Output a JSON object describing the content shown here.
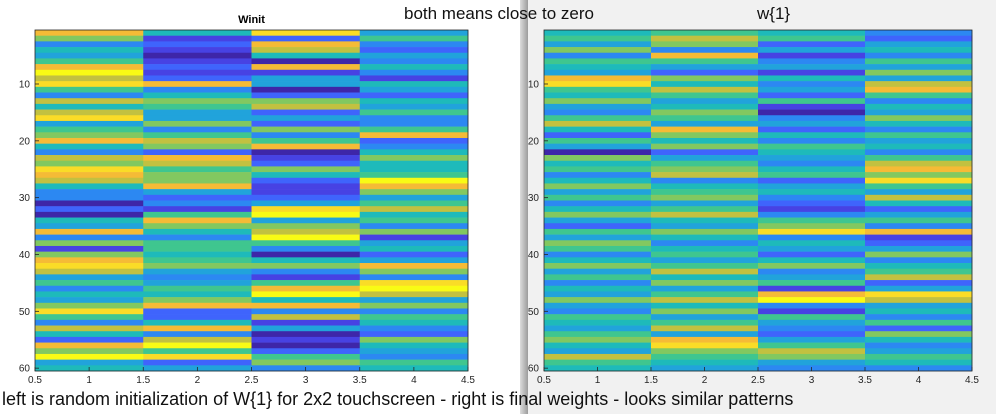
{
  "annotations": {
    "top": "both means close to zero",
    "right_title": "w{1}",
    "caption": "left is random initialization of W{1} for 2x2 touchscreen - right is final weights - looks similar patterns"
  },
  "colormap": [
    "#3e26a8",
    "#4742e3",
    "#3f64fc",
    "#2c88f2",
    "#21a3db",
    "#1ebaba",
    "#3fc68f",
    "#82c860",
    "#c2c140",
    "#f5bb36",
    "#fadc27",
    "#f9fb15"
  ],
  "chart_data": [
    {
      "type": "heatmap",
      "title": "Winit",
      "xlim": [
        0.5,
        4.5
      ],
      "ylim": [
        60.5,
        0.5
      ],
      "x_ticks": [
        "0.5",
        "1",
        "1.5",
        "2",
        "2.5",
        "3",
        "3.5",
        "4",
        "4.5"
      ],
      "y_ticks": [
        "10",
        "20",
        "30",
        "40",
        "50",
        "60"
      ],
      "rows": 60,
      "columns": 4,
      "values_note": "",
      "values": [
        [
          9,
          5,
          10,
          4
        ],
        [
          7,
          1,
          2,
          6
        ],
        [
          3,
          2,
          9,
          3
        ],
        [
          5,
          1,
          8,
          2
        ],
        [
          4,
          0,
          5,
          4
        ],
        [
          6,
          1,
          0,
          3
        ],
        [
          9,
          2,
          9,
          5
        ],
        [
          11,
          1,
          1,
          3
        ],
        [
          8,
          2,
          4,
          1
        ],
        [
          10,
          9,
          4,
          5
        ],
        [
          6,
          3,
          0,
          4
        ],
        [
          3,
          5,
          2,
          2
        ],
        [
          8,
          7,
          7,
          5
        ],
        [
          5,
          6,
          8,
          4
        ],
        [
          8,
          4,
          2,
          6
        ],
        [
          10,
          4,
          4,
          3
        ],
        [
          4,
          7,
          2,
          3
        ],
        [
          6,
          3,
          7,
          6
        ],
        [
          7,
          6,
          3,
          9
        ],
        [
          9,
          8,
          6,
          2
        ],
        [
          5,
          7,
          9,
          3
        ],
        [
          3,
          2,
          0,
          5
        ],
        [
          8,
          9,
          1,
          7
        ],
        [
          7,
          8,
          2,
          5
        ],
        [
          10,
          6,
          7,
          5
        ],
        [
          9,
          7,
          5,
          6
        ],
        [
          8,
          7,
          2,
          11
        ],
        [
          5,
          9,
          1,
          9
        ],
        [
          3,
          4,
          1,
          7
        ],
        [
          3,
          2,
          2,
          4
        ],
        [
          0,
          3,
          4,
          6
        ],
        [
          2,
          1,
          10,
          8
        ],
        [
          0,
          6,
          11,
          5
        ],
        [
          5,
          9,
          4,
          6
        ],
        [
          4,
          7,
          7,
          3
        ],
        [
          9,
          5,
          8,
          7
        ],
        [
          3,
          3,
          11,
          1
        ],
        [
          7,
          6,
          6,
          4
        ],
        [
          1,
          6,
          3,
          5
        ],
        [
          7,
          5,
          0,
          2
        ],
        [
          9,
          6,
          5,
          4
        ],
        [
          10,
          7,
          7,
          9
        ],
        [
          8,
          4,
          3,
          7
        ],
        [
          4,
          3,
          1,
          3
        ],
        [
          6,
          4,
          6,
          10
        ],
        [
          3,
          6,
          9,
          11
        ],
        [
          5,
          5,
          11,
          8
        ],
        [
          4,
          7,
          5,
          4
        ],
        [
          7,
          9,
          9,
          7
        ],
        [
          10,
          2,
          3,
          3
        ],
        [
          6,
          2,
          8,
          6
        ],
        [
          3,
          5,
          1,
          5
        ],
        [
          8,
          9,
          4,
          3
        ],
        [
          5,
          3,
          0,
          2
        ],
        [
          2,
          8,
          1,
          7
        ],
        [
          9,
          11,
          0,
          5
        ],
        [
          7,
          6,
          2,
          4
        ],
        [
          11,
          10,
          6,
          3
        ],
        [
          4,
          2,
          7,
          6
        ],
        [
          5,
          4,
          3,
          5
        ]
      ]
    },
    {
      "type": "heatmap",
      "title": "",
      "xlim": [
        0.5,
        4.5
      ],
      "ylim": [
        60.5,
        0.5
      ],
      "x_ticks": [
        "0.5",
        "1",
        "1.5",
        "2",
        "2.5",
        "3",
        "3.5",
        "4",
        "4.5"
      ],
      "y_ticks": [
        "10",
        "20",
        "30",
        "40",
        "50",
        "60"
      ],
      "rows": 60,
      "columns": 4,
      "values_note": "",
      "values": [
        [
          5,
          6,
          5,
          3
        ],
        [
          6,
          8,
          6,
          2
        ],
        [
          4,
          7,
          2,
          4
        ],
        [
          7,
          3,
          4,
          5
        ],
        [
          3,
          9,
          1,
          3
        ],
        [
          6,
          6,
          3,
          6
        ],
        [
          5,
          4,
          4,
          4
        ],
        [
          4,
          2,
          1,
          7
        ],
        [
          9,
          7,
          5,
          4
        ],
        [
          10,
          5,
          3,
          8
        ],
        [
          6,
          8,
          4,
          9
        ],
        [
          5,
          6,
          2,
          6
        ],
        [
          7,
          4,
          6,
          3
        ],
        [
          4,
          5,
          1,
          5
        ],
        [
          3,
          7,
          0,
          4
        ],
        [
          6,
          6,
          3,
          7
        ],
        [
          8,
          4,
          4,
          5
        ],
        [
          5,
          9,
          2,
          3
        ],
        [
          2,
          7,
          5,
          6
        ],
        [
          6,
          5,
          3,
          4
        ],
        [
          4,
          7,
          6,
          5
        ],
        [
          0,
          2,
          5,
          3
        ],
        [
          7,
          4,
          4,
          6
        ],
        [
          5,
          6,
          3,
          8
        ],
        [
          6,
          7,
          5,
          9
        ],
        [
          3,
          8,
          6,
          7
        ],
        [
          5,
          3,
          2,
          10
        ],
        [
          7,
          5,
          4,
          6
        ],
        [
          4,
          6,
          5,
          4
        ],
        [
          6,
          7,
          3,
          8
        ],
        [
          3,
          4,
          2,
          5
        ],
        [
          5,
          6,
          1,
          2
        ],
        [
          7,
          8,
          3,
          4
        ],
        [
          4,
          5,
          6,
          6
        ],
        [
          2,
          4,
          7,
          3
        ],
        [
          6,
          7,
          10,
          9
        ],
        [
          4,
          5,
          3,
          1
        ],
        [
          7,
          3,
          5,
          2
        ],
        [
          6,
          5,
          4,
          4
        ],
        [
          3,
          6,
          2,
          7
        ],
        [
          5,
          4,
          5,
          3
        ],
        [
          7,
          6,
          7,
          5
        ],
        [
          4,
          8,
          3,
          6
        ],
        [
          6,
          5,
          4,
          8
        ],
        [
          3,
          7,
          6,
          2
        ],
        [
          5,
          4,
          1,
          4
        ],
        [
          4,
          6,
          9,
          10
        ],
        [
          7,
          8,
          11,
          8
        ],
        [
          4,
          5,
          3,
          4
        ],
        [
          3,
          7,
          1,
          5
        ],
        [
          6,
          4,
          6,
          3
        ],
        [
          5,
          6,
          4,
          6
        ],
        [
          4,
          8,
          3,
          2
        ],
        [
          6,
          4,
          2,
          7
        ],
        [
          7,
          9,
          4,
          5
        ],
        [
          5,
          10,
          6,
          3
        ],
        [
          4,
          7,
          8,
          4
        ],
        [
          8,
          6,
          7,
          6
        ],
        [
          6,
          5,
          4,
          5
        ],
        [
          5,
          4,
          3,
          3
        ]
      ]
    }
  ]
}
